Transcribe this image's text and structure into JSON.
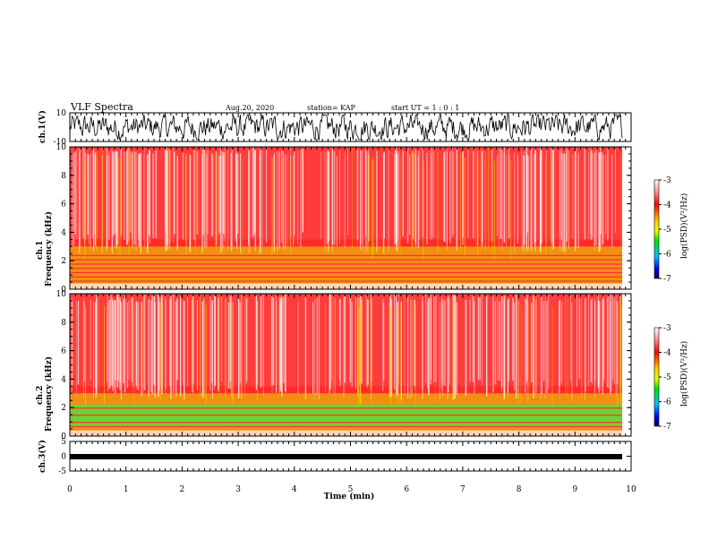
{
  "header": {
    "title": "VLF Spectra",
    "date": "Aug.20, 2020",
    "station": "station= KAP",
    "start_ut": "start  UT =   1 : 0  : 1"
  },
  "chart_data": [
    {
      "type": "line",
      "panel": "ch1-waveform",
      "ylabel": "ch.1(V)",
      "ylim": [
        -10,
        10
      ],
      "yticks": [
        "10",
        "-10"
      ],
      "xlim": [
        0,
        10
      ],
      "series": [
        {
          "values": [
            -2,
            4,
            -6,
            7,
            -3,
            2,
            -8,
            5,
            -1,
            6,
            -7,
            3,
            0,
            -5,
            8,
            -2,
            4,
            -6,
            1,
            7,
            -4,
            3,
            -8,
            5,
            -2,
            6,
            -3,
            1,
            -7,
            4,
            2,
            -5,
            7,
            -1,
            3,
            -6,
            5,
            -3,
            8,
            -2,
            0,
            -5,
            6,
            -4,
            2,
            7,
            -6,
            3,
            -2,
            5
          ]
        }
      ]
    },
    {
      "type": "heatmap",
      "panel": "ch1-spectrogram",
      "ylabel": "ch.1\nFrequency (kHz)",
      "ylim": [
        0,
        10
      ],
      "yticks": [
        "0",
        "2",
        "4",
        "6",
        "8",
        "10"
      ],
      "xlim": [
        0,
        10
      ],
      "colorbar": {
        "label": "log(PSD)(V²/Hz)",
        "range": [
          -7,
          -3
        ],
        "ticks": [
          "-3",
          "-4",
          "-5",
          "-6",
          "-7"
        ]
      }
    },
    {
      "type": "heatmap",
      "panel": "ch2-spectrogram",
      "ylabel": "ch.2\nFrequency (kHz)",
      "ylim": [
        0,
        10
      ],
      "yticks": [
        "0",
        "2",
        "4",
        "6",
        "8",
        "10"
      ],
      "xlim": [
        0,
        10
      ],
      "colorbar": {
        "label": "log(PSD)(V²/Hz)",
        "range": [
          -7,
          -3
        ],
        "ticks": [
          "-3",
          "-4",
          "-5",
          "-6",
          "-7"
        ]
      }
    },
    {
      "type": "line",
      "panel": "ch3-waveform",
      "ylabel": "ch.3(V)",
      "ylim": [
        -5,
        5
      ],
      "yticks": [
        "5",
        "0",
        "-5"
      ],
      "xlim": [
        0,
        10
      ],
      "series": [
        {
          "values": [
            -0.3,
            0.3
          ]
        }
      ]
    }
  ],
  "xaxis": {
    "label": "Time (min)",
    "ticks": [
      "0",
      "1",
      "2",
      "3",
      "4",
      "5",
      "6",
      "7",
      "8",
      "9",
      "10"
    ]
  },
  "colors": {
    "red": "#ff2020",
    "yellow": "#e8e000",
    "green": "#20e820",
    "blue": "#0000ff",
    "navy": "#000040"
  }
}
